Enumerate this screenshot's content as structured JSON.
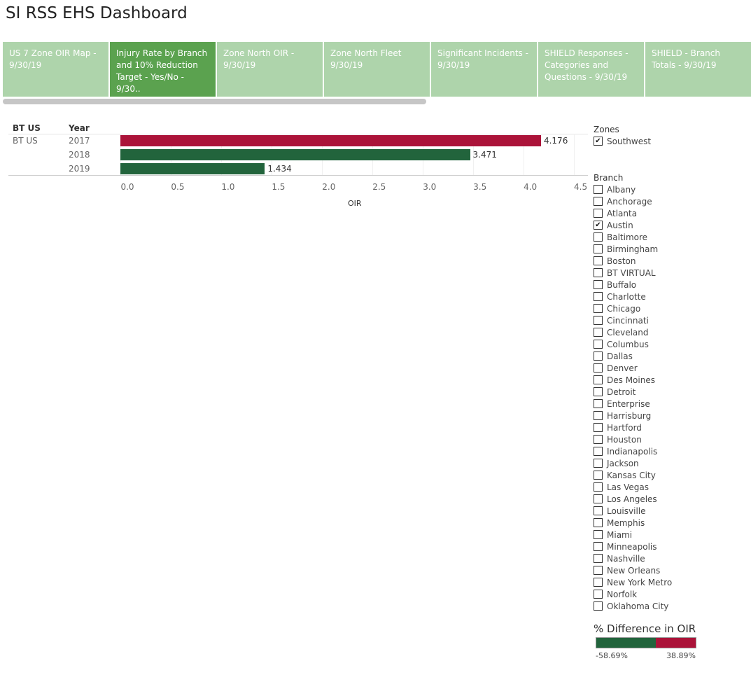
{
  "title": "SI RSS EHS Dashboard",
  "tabs": [
    {
      "label": "US 7 Zone OIR Map - 9/30/19",
      "active": false
    },
    {
      "label": "Injury Rate by Branch and 10% Reduction Target - Yes/No - 9/30..",
      "active": true
    },
    {
      "label": "Zone North OIR - 9/30/19",
      "active": false
    },
    {
      "label": "Zone North Fleet 9/30/19",
      "active": false
    },
    {
      "label": "Significant Incidents - 9/30/19",
      "active": false
    },
    {
      "label": "SHIELD Responses - Categories and Questions - 9/30/19",
      "active": false
    },
    {
      "label": "SHIELD - Branch Totals - 9/30/19",
      "active": false
    }
  ],
  "chart": {
    "col_header_1": "BT US",
    "col_header_2": "Year",
    "row_label": "BT US",
    "axis_title": "OIR"
  },
  "chart_data": {
    "type": "bar",
    "orientation": "horizontal",
    "categories": [
      "2017",
      "2018",
      "2019"
    ],
    "values": [
      4.176,
      3.471,
      1.434
    ],
    "value_labels": [
      "4.176",
      "3.471",
      "1.434"
    ],
    "colors": [
      "#ab1339",
      "#22643c",
      "#22643c"
    ],
    "xlabel": "OIR",
    "xlim": [
      0,
      4.6
    ],
    "ticks": [
      "0.0",
      "0.5",
      "1.0",
      "1.5",
      "2.0",
      "2.5",
      "3.0",
      "3.5",
      "4.0",
      "4.5"
    ],
    "tick_values": [
      0,
      0.5,
      1,
      1.5,
      2,
      2.5,
      3,
      3.5,
      4,
      4.5
    ],
    "grid": true
  },
  "zones": {
    "title": "Zones",
    "items": [
      {
        "label": "Southwest",
        "checked": true
      }
    ]
  },
  "branch": {
    "title": "Branch",
    "items": [
      {
        "label": "Albany",
        "checked": false
      },
      {
        "label": "Anchorage",
        "checked": false
      },
      {
        "label": "Atlanta",
        "checked": false
      },
      {
        "label": "Austin",
        "checked": true
      },
      {
        "label": "Baltimore",
        "checked": false
      },
      {
        "label": "Birmingham",
        "checked": false
      },
      {
        "label": "Boston",
        "checked": false
      },
      {
        "label": "BT VIRTUAL",
        "checked": false
      },
      {
        "label": "Buffalo",
        "checked": false
      },
      {
        "label": "Charlotte",
        "checked": false
      },
      {
        "label": "Chicago",
        "checked": false
      },
      {
        "label": "Cincinnati",
        "checked": false
      },
      {
        "label": "Cleveland",
        "checked": false
      },
      {
        "label": "Columbus",
        "checked": false
      },
      {
        "label": "Dallas",
        "checked": false
      },
      {
        "label": "Denver",
        "checked": false
      },
      {
        "label": "Des Moines",
        "checked": false
      },
      {
        "label": "Detroit",
        "checked": false
      },
      {
        "label": "Enterprise",
        "checked": false
      },
      {
        "label": "Harrisburg",
        "checked": false
      },
      {
        "label": "Hartford",
        "checked": false
      },
      {
        "label": "Houston",
        "checked": false
      },
      {
        "label": "Indianapolis",
        "checked": false
      },
      {
        "label": "Jackson",
        "checked": false
      },
      {
        "label": "Kansas City",
        "checked": false
      },
      {
        "label": "Las Vegas",
        "checked": false
      },
      {
        "label": "Los Angeles",
        "checked": false
      },
      {
        "label": "Louisville",
        "checked": false
      },
      {
        "label": "Memphis",
        "checked": false
      },
      {
        "label": "Miami",
        "checked": false
      },
      {
        "label": "Minneapolis",
        "checked": false
      },
      {
        "label": "Nashville",
        "checked": false
      },
      {
        "label": "New Orleans",
        "checked": false
      },
      {
        "label": "New York Metro",
        "checked": false
      },
      {
        "label": "Norfolk",
        "checked": false
      },
      {
        "label": "Oklahoma City",
        "checked": false
      }
    ]
  },
  "legend": {
    "title": "% Difference in OIR",
    "min_label": "-58.69%",
    "max_label": "38.89%",
    "min_color": "#22643c",
    "max_color": "#ab1339",
    "min_value": -58.69,
    "max_value": 38.89
  },
  "check_glyph": "✔"
}
